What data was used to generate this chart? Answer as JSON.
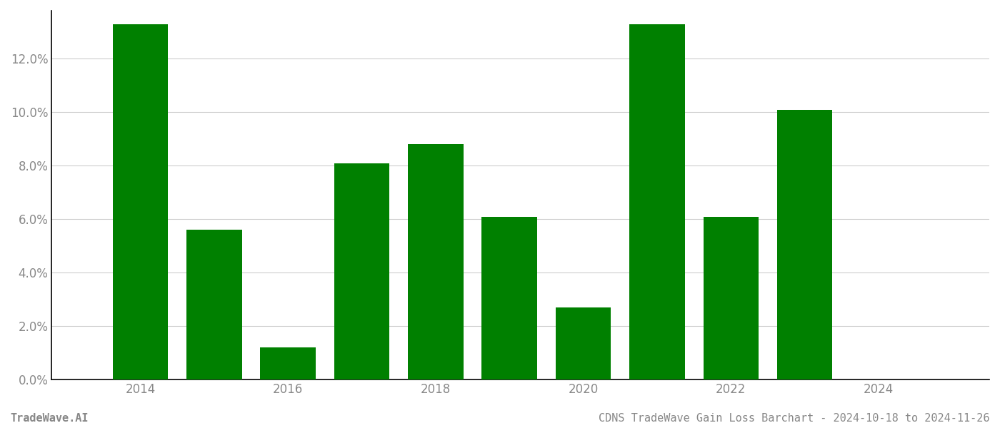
{
  "years": [
    2014,
    2015,
    2016,
    2017,
    2018,
    2019,
    2020,
    2021,
    2022,
    2023,
    2024
  ],
  "values": [
    0.133,
    0.056,
    0.012,
    0.081,
    0.088,
    0.061,
    0.027,
    0.133,
    0.061,
    0.101,
    0.0
  ],
  "bar_color": "#008000",
  "title": "CDNS TradeWave Gain Loss Barchart - 2024-10-18 to 2024-11-26",
  "watermark": "TradeWave.AI",
  "ylim": [
    0,
    0.138
  ],
  "yticks": [
    0.0,
    0.02,
    0.04,
    0.06,
    0.08,
    0.1,
    0.12
  ],
  "background_color": "#ffffff",
  "grid_color": "#cccccc",
  "tick_color": "#aaaaaa",
  "label_color": "#888888",
  "spine_color": "#000000",
  "title_fontsize": 11,
  "watermark_fontsize": 11,
  "axis_fontsize": 12,
  "bar_width": 0.75,
  "xlim": [
    2012.8,
    2025.5
  ]
}
